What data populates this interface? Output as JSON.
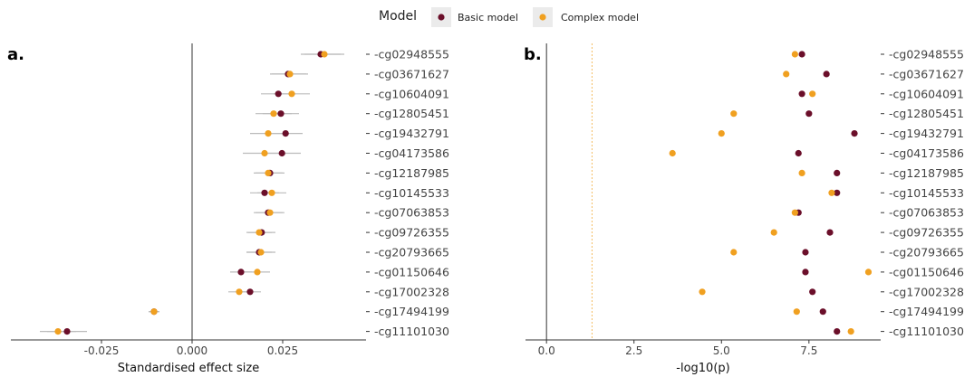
{
  "legend": {
    "title": "Model",
    "items": [
      {
        "label": "Basic model",
        "color": "#6b0f2a"
      },
      {
        "label": "Complex model",
        "color": "#f0a020"
      }
    ]
  },
  "chart_data": [
    {
      "type": "scatter",
      "panel_label": "a.",
      "xlabel": "Standardised effect size",
      "xlim": [
        -0.05,
        0.048
      ],
      "xticks": [
        -0.025,
        0.0,
        0.025
      ],
      "xtick_labels": [
        "-0.025",
        "0.000",
        "0.025"
      ],
      "vline": 0,
      "categories": [
        "cg02948555",
        "cg03671627",
        "cg10604091",
        "cg12805451",
        "cg19432791",
        "cg04173586",
        "cg12187985",
        "cg10145533",
        "cg07063853",
        "cg09726355",
        "cg20793665",
        "cg01150646",
        "cg17002328",
        "cg17494199",
        "cg11101030"
      ],
      "series": [
        {
          "name": "Basic model",
          "color": "#6b0f2a",
          "values": [
            0.0355,
            0.0265,
            0.0238,
            0.0245,
            0.0258,
            0.0248,
            0.0215,
            0.02,
            0.021,
            0.0192,
            0.0185,
            0.0135,
            0.016,
            -0.0105,
            -0.0345
          ],
          "ci_low": [
            0.03,
            0.0215,
            0.019,
            0.0195,
            0.021,
            0.0195,
            0.0175,
            0.016,
            0.017,
            0.0155,
            0.015,
            0.0105,
            0.013,
            -0.012,
            -0.04
          ],
          "ci_high": [
            0.041,
            0.0315,
            0.0285,
            0.0295,
            0.0305,
            0.03,
            0.0255,
            0.024,
            0.025,
            0.023,
            0.022,
            0.0165,
            0.019,
            -0.009,
            -0.029
          ]
        },
        {
          "name": "Complex model",
          "color": "#f0a020",
          "values": [
            0.0365,
            0.027,
            0.0275,
            0.0225,
            0.021,
            0.02,
            0.021,
            0.022,
            0.0215,
            0.0185,
            0.019,
            0.018,
            0.013,
            -0.0105,
            -0.037
          ],
          "ci_low": [
            0.031,
            0.022,
            0.0225,
            0.0175,
            0.016,
            0.014,
            0.017,
            0.018,
            0.0175,
            0.015,
            0.015,
            0.0145,
            0.01,
            -0.012,
            -0.042
          ],
          "ci_high": [
            0.042,
            0.032,
            0.0325,
            0.0275,
            0.026,
            0.026,
            0.025,
            0.026,
            0.0255,
            0.022,
            0.023,
            0.0215,
            0.016,
            -0.009,
            -0.032
          ]
        }
      ]
    },
    {
      "type": "scatter",
      "panel_label": "b.",
      "xlabel": "-log10(p)",
      "xlim": [
        -0.6,
        9.55
      ],
      "xticks": [
        0,
        2.5,
        5,
        7.5
      ],
      "xtick_labels": [
        "0.0",
        "2.5",
        "5.0",
        "7.5"
      ],
      "vline": 0,
      "threshold_line": 1.301,
      "categories": [
        "cg02948555",
        "cg03671627",
        "cg10604091",
        "cg12805451",
        "cg19432791",
        "cg04173586",
        "cg12187985",
        "cg10145533",
        "cg07063853",
        "cg09726355",
        "cg20793665",
        "cg01150646",
        "cg17002328",
        "cg17494199",
        "cg11101030"
      ],
      "series": [
        {
          "name": "Basic model",
          "color": "#6b0f2a",
          "values": [
            7.3,
            8.0,
            7.3,
            7.5,
            8.8,
            7.2,
            8.3,
            8.3,
            7.2,
            8.1,
            7.4,
            7.4,
            7.6,
            7.9,
            8.3
          ]
        },
        {
          "name": "Complex model",
          "color": "#f0a020",
          "values": [
            7.1,
            6.85,
            7.6,
            5.35,
            5.0,
            3.6,
            7.3,
            8.15,
            7.1,
            6.5,
            5.35,
            9.2,
            4.45,
            7.15,
            8.7
          ]
        }
      ]
    }
  ]
}
